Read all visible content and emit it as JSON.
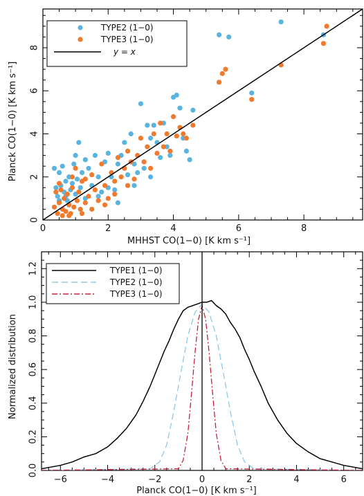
{
  "chart_data": [
    {
      "type": "scatter",
      "xlabel": "MHHST CO(1−0) [K km s⁻¹]",
      "ylabel": "Planck CO(1−0) [K km s⁻¹]",
      "xlim": [
        0,
        9.8
      ],
      "ylim": [
        0,
        9.8
      ],
      "xticks": [
        0,
        2,
        4,
        6,
        8
      ],
      "yticks": [
        0,
        2,
        4,
        6,
        8
      ],
      "legend": {
        "placement": "top-left",
        "entries": [
          "TYPE2 (1−0)",
          "TYPE3 (1−0)",
          "y = x"
        ]
      },
      "series": [
        {
          "name": "TYPE2 (1−0)",
          "color": "#5ab4e0",
          "points": [
            [
              0.35,
              2.4
            ],
            [
              0.4,
              1.5
            ],
            [
              0.45,
              1.1
            ],
            [
              0.5,
              2.2
            ],
            [
              0.55,
              1.6
            ],
            [
              0.6,
              2.5
            ],
            [
              0.65,
              1.3
            ],
            [
              0.7,
              1.8
            ],
            [
              0.75,
              0.9
            ],
            [
              0.8,
              2.0
            ],
            [
              0.85,
              1.4
            ],
            [
              0.9,
              1.7
            ],
            [
              0.95,
              2.6
            ],
            [
              1.0,
              1.2
            ],
            [
              1.05,
              1.9
            ],
            [
              1.1,
              3.6
            ],
            [
              1.15,
              1.5
            ],
            [
              1.2,
              2.2
            ],
            [
              1.3,
              1.0
            ],
            [
              1.4,
              2.4
            ],
            [
              1.5,
              1.6
            ],
            [
              1.6,
              3.0
            ],
            [
              1.7,
              2.0
            ],
            [
              1.8,
              1.3
            ],
            [
              1.9,
              2.7
            ],
            [
              2.0,
              3.1
            ],
            [
              2.1,
              2.0
            ],
            [
              2.2,
              1.4
            ],
            [
              2.3,
              2.6
            ],
            [
              2.4,
              3.0
            ],
            [
              2.5,
              3.6
            ],
            [
              2.6,
              2.1
            ],
            [
              2.7,
              4.0
            ],
            [
              2.8,
              2.6
            ],
            [
              2.9,
              2.2
            ],
            [
              3.0,
              5.4
            ],
            [
              3.1,
              2.4
            ],
            [
              3.2,
              4.4
            ],
            [
              3.3,
              3.8
            ],
            [
              3.4,
              4.4
            ],
            [
              3.5,
              3.6
            ],
            [
              3.6,
              2.9
            ],
            [
              3.7,
              4.5
            ],
            [
              3.8,
              3.4
            ],
            [
              3.9,
              3.0
            ],
            [
              4.0,
              5.7
            ],
            [
              4.1,
              5.8
            ],
            [
              4.2,
              5.2
            ],
            [
              4.3,
              3.8
            ],
            [
              4.4,
              3.2
            ],
            [
              4.5,
              2.8
            ],
            [
              4.6,
              5.1
            ],
            [
              5.4,
              8.6
            ],
            [
              5.7,
              8.5
            ],
            [
              6.4,
              5.9
            ],
            [
              7.3,
              9.2
            ],
            [
              8.6,
              8.6
            ],
            [
              0.5,
              0.9
            ],
            [
              0.7,
              1.1
            ],
            [
              1.3,
              2.8
            ],
            [
              1.7,
              1.1
            ],
            [
              2.3,
              0.8
            ],
            [
              2.0,
              1.5
            ],
            [
              2.8,
              1.6
            ],
            [
              3.3,
              2.0
            ],
            [
              1.0,
              3.0
            ]
          ]
        },
        {
          "name": "TYPE3 (1−0)",
          "color": "#f07a2e",
          "points": [
            [
              0.35,
              0.6
            ],
            [
              0.4,
              1.3
            ],
            [
              0.45,
              0.3
            ],
            [
              0.5,
              0.8
            ],
            [
              0.55,
              1.4
            ],
            [
              0.6,
              0.5
            ],
            [
              0.65,
              1.0
            ],
            [
              0.7,
              0.4
            ],
            [
              0.75,
              1.2
            ],
            [
              0.8,
              0.7
            ],
            [
              0.85,
              0.3
            ],
            [
              0.9,
              1.5
            ],
            [
              0.95,
              0.6
            ],
            [
              1.0,
              2.4
            ],
            [
              1.05,
              0.9
            ],
            [
              1.1,
              1.3
            ],
            [
              1.15,
              0.5
            ],
            [
              1.2,
              1.8
            ],
            [
              1.3,
              0.8
            ],
            [
              1.4,
              1.1
            ],
            [
              1.5,
              2.1
            ],
            [
              1.6,
              1.4
            ],
            [
              1.7,
              0.9
            ],
            [
              1.8,
              2.6
            ],
            [
              1.9,
              1.6
            ],
            [
              2.0,
              1.0
            ],
            [
              2.1,
              2.2
            ],
            [
              2.2,
              1.8
            ],
            [
              2.3,
              2.9
            ],
            [
              2.4,
              2.0
            ],
            [
              2.5,
              2.4
            ],
            [
              2.6,
              3.2
            ],
            [
              2.7,
              2.7
            ],
            [
              2.8,
              1.9
            ],
            [
              2.9,
              3.0
            ],
            [
              3.0,
              3.8
            ],
            [
              3.1,
              2.7
            ],
            [
              3.2,
              3.4
            ],
            [
              3.3,
              2.4
            ],
            [
              3.4,
              4.0
            ],
            [
              3.5,
              3.1
            ],
            [
              3.6,
              4.5
            ],
            [
              3.7,
              3.4
            ],
            [
              3.8,
              4.0
            ],
            [
              3.9,
              3.2
            ],
            [
              4.0,
              4.8
            ],
            [
              4.1,
              3.9
            ],
            [
              4.2,
              4.3
            ],
            [
              4.3,
              4.0
            ],
            [
              4.4,
              3.8
            ],
            [
              4.6,
              4.4
            ],
            [
              5.4,
              6.4
            ],
            [
              5.5,
              6.8
            ],
            [
              5.6,
              7.0
            ],
            [
              6.4,
              5.6
            ],
            [
              7.3,
              7.2
            ],
            [
              8.6,
              8.2
            ],
            [
              8.7,
              9.0
            ],
            [
              0.5,
              1.7
            ],
            [
              0.6,
              0.2
            ],
            [
              0.8,
              0.2
            ],
            [
              1.2,
              0.3
            ],
            [
              1.5,
              0.5
            ],
            [
              1.9,
              0.7
            ],
            [
              2.2,
              1.2
            ],
            [
              2.6,
              1.6
            ],
            [
              1.3,
              1.9
            ],
            [
              0.9,
              2.0
            ]
          ]
        }
      ],
      "reference_line": {
        "name": "y = x",
        "from": [
          0,
          0
        ],
        "to": [
          9.8,
          9.8
        ],
        "color": "#000000"
      }
    },
    {
      "type": "line",
      "xlabel": "Planck CO(1−0) [K km s⁻¹]",
      "ylabel": "Normalized distribution",
      "xlim": [
        -6.8,
        6.8
      ],
      "ylim": [
        0,
        1.3
      ],
      "xticks": [
        -6,
        -4,
        -2,
        0,
        2,
        4,
        6
      ],
      "yticks": [
        0,
        0.2,
        0.4,
        0.6,
        0.8,
        1.0,
        1.2
      ],
      "ytick_labels": [
        "0.0",
        "0.2",
        "0.4",
        "0.6",
        "0.8",
        "1.0",
        "1.2"
      ],
      "legend": {
        "placement": "top-left",
        "entries": [
          "TYPE1 (1−0)",
          "TYPE2 (1−0)",
          "TYPE3 (1−0)"
        ]
      },
      "vertical_line_x": 0,
      "series": [
        {
          "name": "TYPE1 (1−0)",
          "color": "#000000",
          "dash": "solid",
          "x": [
            -6.8,
            -6.0,
            -5.5,
            -5.0,
            -4.5,
            -4.0,
            -3.6,
            -3.2,
            -2.8,
            -2.5,
            -2.2,
            -2.0,
            -1.8,
            -1.6,
            -1.4,
            -1.2,
            -1.0,
            -0.8,
            -0.6,
            -0.4,
            -0.2,
            0.0,
            0.2,
            0.4,
            0.6,
            0.8,
            1.0,
            1.2,
            1.4,
            1.6,
            1.8,
            2.0,
            2.2,
            2.5,
            2.8,
            3.2,
            3.6,
            4.0,
            4.5,
            5.0,
            5.5,
            6.0,
            6.8
          ],
          "y": [
            0.01,
            0.03,
            0.05,
            0.08,
            0.1,
            0.14,
            0.19,
            0.25,
            0.33,
            0.41,
            0.5,
            0.57,
            0.64,
            0.71,
            0.77,
            0.84,
            0.9,
            0.95,
            0.97,
            0.98,
            0.99,
            1.0,
            1.0,
            1.01,
            0.98,
            0.96,
            0.93,
            0.88,
            0.84,
            0.79,
            0.72,
            0.66,
            0.59,
            0.5,
            0.4,
            0.3,
            0.22,
            0.16,
            0.11,
            0.07,
            0.05,
            0.03,
            0.01
          ]
        },
        {
          "name": "TYPE2 (1−0)",
          "color": "#8ec9e8",
          "dash": "long",
          "x": [
            -6.8,
            -2.2,
            -1.8,
            -1.5,
            -1.2,
            -0.9,
            -0.6,
            -0.3,
            0.0,
            0.3,
            0.6,
            0.9,
            1.2,
            1.5,
            1.8,
            2.2,
            6.8
          ],
          "y": [
            0.0,
            0.01,
            0.05,
            0.15,
            0.35,
            0.58,
            0.8,
            0.94,
            0.99,
            0.94,
            0.8,
            0.58,
            0.35,
            0.15,
            0.05,
            0.01,
            0.0
          ]
        },
        {
          "name": "TYPE3 (1−0)",
          "color": "#c8203a",
          "dash": "dashdot",
          "x": [
            -6.8,
            -1.0,
            -0.8,
            -0.6,
            -0.45,
            -0.3,
            -0.15,
            0.0,
            0.15,
            0.3,
            0.45,
            0.6,
            0.8,
            1.0,
            6.8
          ],
          "y": [
            0.0,
            0.01,
            0.06,
            0.22,
            0.45,
            0.7,
            0.9,
            0.98,
            0.9,
            0.7,
            0.45,
            0.22,
            0.06,
            0.01,
            0.0
          ]
        }
      ]
    }
  ]
}
